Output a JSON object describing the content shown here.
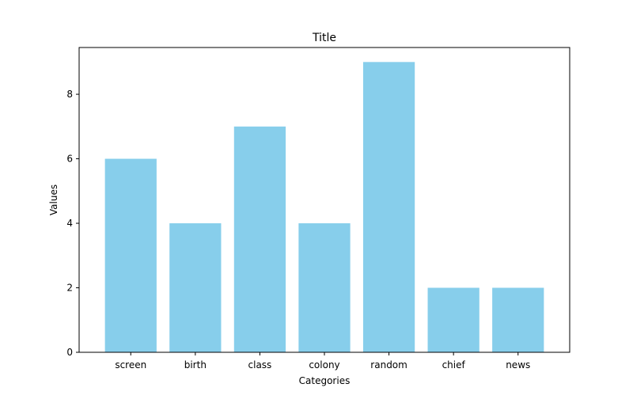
{
  "chart_data": {
    "type": "bar",
    "title": "Title",
    "xlabel": "Categories",
    "ylabel": "Values",
    "categories": [
      "screen",
      "birth",
      "class",
      "colony",
      "random",
      "chief",
      "news"
    ],
    "values": [
      6,
      4,
      7,
      4,
      9,
      2,
      2
    ],
    "ylim": [
      0,
      9.45
    ],
    "yticks": [
      0,
      2,
      4,
      6,
      8
    ],
    "bar_color": "#87ceeb",
    "grid": false,
    "legend": "none"
  }
}
